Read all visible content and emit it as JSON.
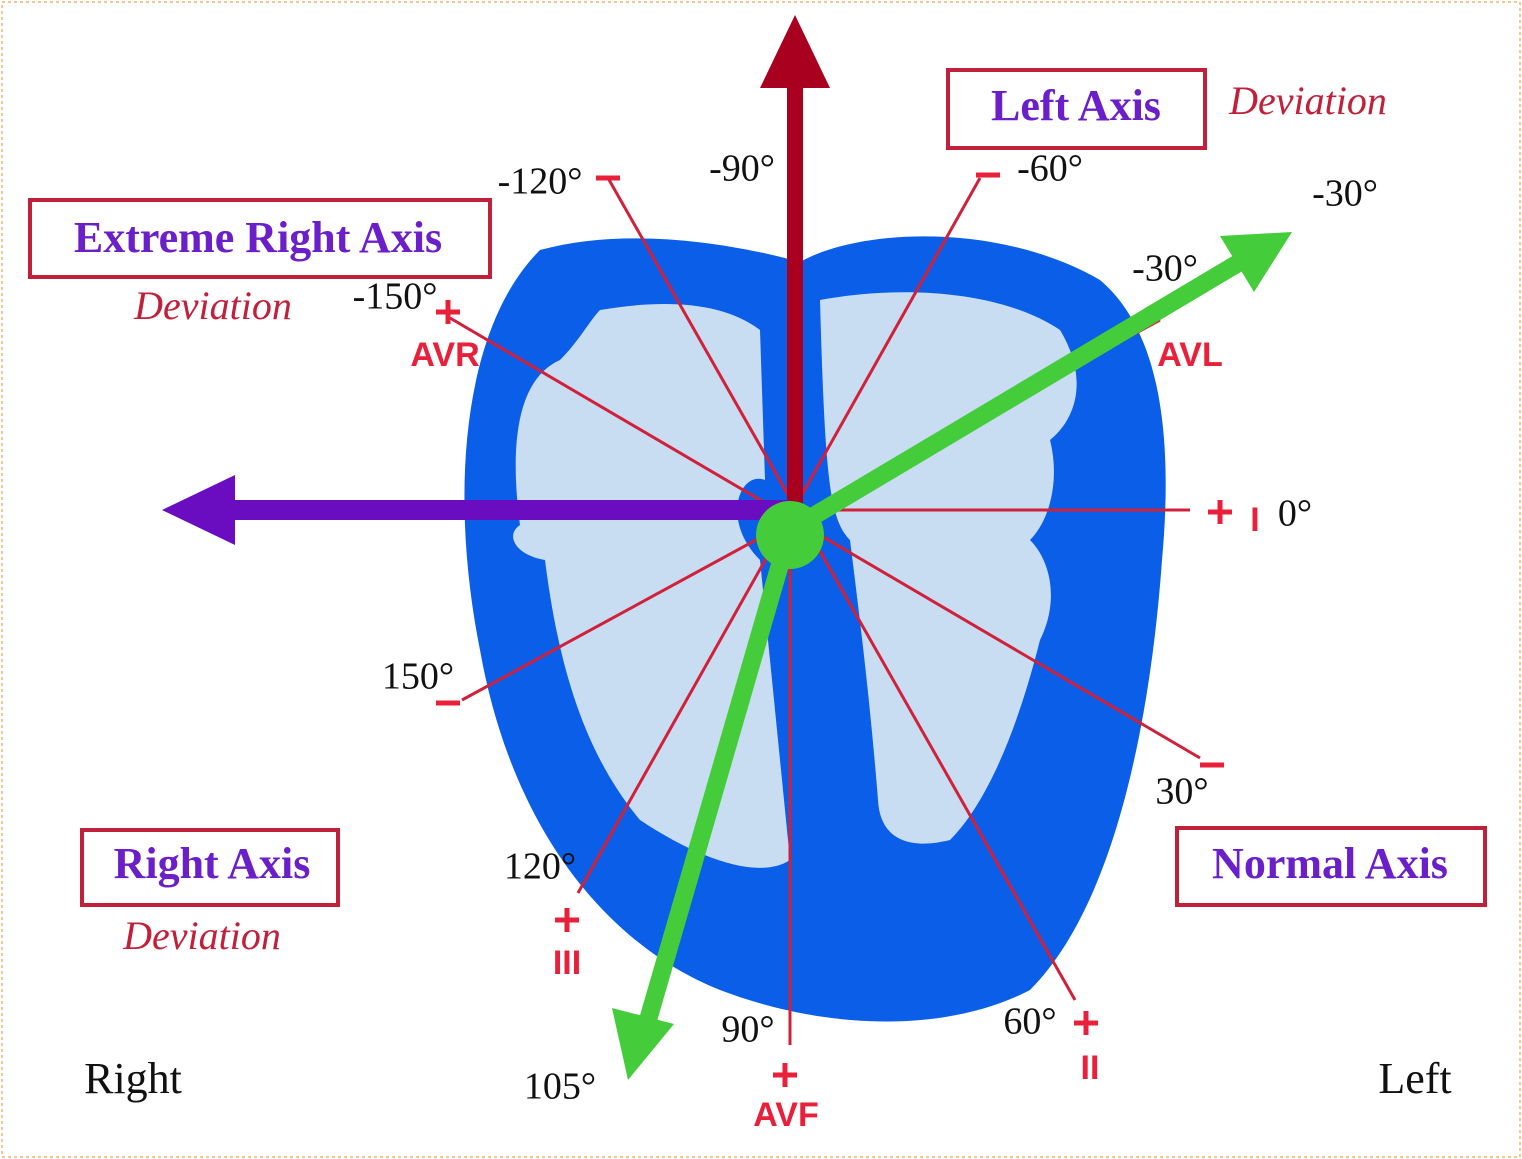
{
  "regions": [
    {
      "label": "Left Axis",
      "sublabel": "Deviation"
    },
    {
      "label": "Extreme Right Axis",
      "sublabel": "Deviation"
    },
    {
      "label": "Right Axis",
      "sublabel": "Deviation"
    },
    {
      "label": "Normal Axis"
    }
  ],
  "angles": [
    "-120°",
    "-90°",
    "-60°",
    "-30°",
    "-30°",
    "-150°",
    "0°",
    "150°",
    "30°",
    "120°",
    "90°",
    "60°",
    "105°"
  ],
  "leads": [
    "AVR",
    "AVL",
    "I",
    "II",
    "III",
    "AVF"
  ],
  "sides": {
    "right": "Right",
    "left": "Left"
  }
}
